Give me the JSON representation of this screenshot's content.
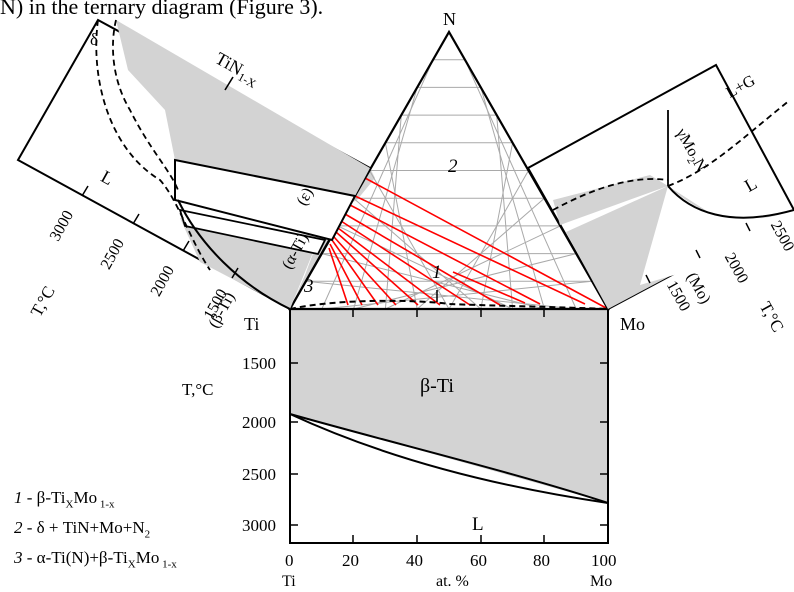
{
  "header_fragment": "N) in the ternary diagram (Figure 3).",
  "ternary": {
    "corner_top": "N",
    "corner_left": "Ti",
    "corner_right": "Mo",
    "region_2": "2",
    "region_1": "1",
    "region_3": "3"
  },
  "left_panel": {
    "phase_top": "TiN",
    "phase_top_sub": "1-X",
    "delta": "δ",
    "liquid": "L",
    "epsilon": "(ε)",
    "alpha": "(α-Ti)",
    "beta": "(β-Ti)",
    "axis_label": "T,°C",
    "ticks": [
      "3000",
      "2500",
      "2000",
      "1500"
    ]
  },
  "right_panel": {
    "liquid_gas": "L+G",
    "gamma_label": "γMo",
    "gamma_sub": "2",
    "gamma_tail": "N",
    "liquid": "L",
    "mo_phase": "(Mo)",
    "axis_label": "T,°C",
    "ticks": [
      "2500",
      "2000",
      "1500"
    ]
  },
  "binary": {
    "beta_label": "β-Ti",
    "liquid": "L",
    "axis_label": "T,°C",
    "y_ticks": [
      "1500",
      "2000",
      "2500",
      "3000"
    ],
    "x_ticks": [
      "0",
      "20",
      "40",
      "60",
      "80",
      "100"
    ],
    "x_left": "Ti",
    "x_mid": "at. %",
    "x_right": "Mo"
  },
  "legend": [
    {
      "num": "1 -",
      "text": "β-Ti",
      "s1": "X",
      "mid": "Mo",
      "s2": " 1-x",
      "tail": ""
    },
    {
      "num": "2 -",
      "text": "δ + TiN+Mo+N",
      "s1": "2",
      "mid": "",
      "s2": "",
      "tail": ""
    },
    {
      "num": "3 -",
      "text": "α-Ti(N)+β-Ti",
      "s1": "X",
      "mid": "Mo",
      "s2": " 1-x",
      "tail": ""
    }
  ],
  "colors": {
    "gray_fill": "#d3d3d3",
    "grid_line": "#a9a9a9",
    "tie_line": "#ff0000",
    "ink": "#000000"
  }
}
